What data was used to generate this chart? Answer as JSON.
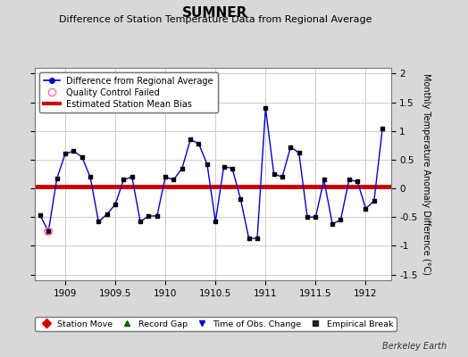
{
  "title": "SUMNER",
  "subtitle": "Difference of Station Temperature Data from Regional Average",
  "ylabel": "Monthly Temperature Anomaly Difference (°C)",
  "background_color": "#d8d8d8",
  "plot_bg_color": "#ffffff",
  "bias_value": 0.04,
  "xlim": [
    1908.7,
    1912.25
  ],
  "ylim": [
    -1.6,
    2.1
  ],
  "yticks": [
    -1.5,
    -1.0,
    -0.5,
    0.0,
    0.5,
    1.0,
    1.5,
    2.0
  ],
  "xticks": [
    1909,
    1909.5,
    1910,
    1910.5,
    1911,
    1911.5,
    1912
  ],
  "x": [
    1908.75,
    1908.833,
    1908.917,
    1909.0,
    1909.083,
    1909.167,
    1909.25,
    1909.333,
    1909.417,
    1909.5,
    1909.583,
    1909.667,
    1909.75,
    1909.833,
    1909.917,
    1910.0,
    1910.083,
    1910.167,
    1910.25,
    1910.333,
    1910.417,
    1910.5,
    1910.583,
    1910.667,
    1910.75,
    1910.833,
    1910.917,
    1911.0,
    1911.083,
    1911.167,
    1911.25,
    1911.333,
    1911.417,
    1911.5,
    1911.583,
    1911.667,
    1911.75,
    1911.833,
    1911.917,
    1912.0,
    1912.083,
    1912.167
  ],
  "y": [
    -0.47,
    -0.75,
    0.17,
    0.6,
    0.65,
    0.55,
    0.2,
    -0.58,
    -0.45,
    -0.28,
    0.15,
    0.2,
    -0.58,
    -0.48,
    -0.48,
    0.2,
    0.15,
    0.35,
    0.85,
    0.78,
    0.42,
    -0.58,
    0.38,
    0.35,
    -0.18,
    -0.87,
    -0.87,
    1.4,
    0.25,
    0.2,
    0.72,
    0.62,
    -0.5,
    -0.5,
    0.15,
    -0.62,
    -0.55,
    0.15,
    0.12,
    -0.35,
    -0.22,
    1.05
  ],
  "qc_x": [
    1908.833
  ],
  "qc_y": [
    -0.75
  ],
  "line_color": "#0000cc",
  "marker_color": "#000000",
  "qc_color": "#ff69b4",
  "bias_color": "#cc0000",
  "grid_color": "#cccccc",
  "legend1_labels": [
    "Difference from Regional Average",
    "Quality Control Failed",
    "Estimated Station Mean Bias"
  ],
  "legend2_labels": [
    "Station Move",
    "Record Gap",
    "Time of Obs. Change",
    "Empirical Break"
  ],
  "title_fontsize": 11,
  "subtitle_fontsize": 8,
  "axis_fontsize": 7,
  "tick_fontsize": 7.5
}
